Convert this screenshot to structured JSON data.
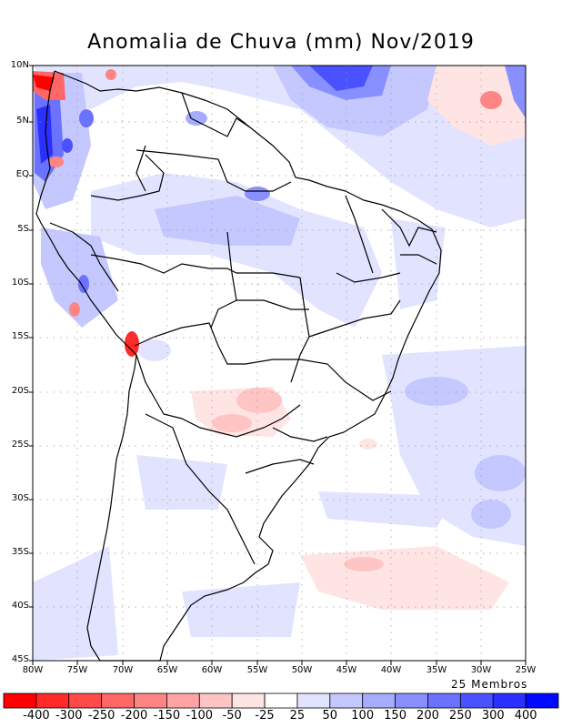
{
  "title": "Anomalia de Chuva (mm) Nov/2019",
  "subtitle": "25 Membros",
  "lat_labels": [
    "10N",
    "5N",
    "EQ",
    "5S",
    "10S",
    "15S",
    "20S",
    "25S",
    "30S",
    "35S",
    "40S",
    "45S"
  ],
  "lon_labels": [
    "80W",
    "75W",
    "70W",
    "65W",
    "60W",
    "55W",
    "50W",
    "45W",
    "40W",
    "35W",
    "30W",
    "25W"
  ],
  "colorbar": {
    "labels": [
      "-400",
      "-300",
      "-250",
      "-200",
      "-150",
      "-100",
      "-50",
      "-25",
      "25",
      "50",
      "100",
      "150",
      "200",
      "250",
      "300",
      "400"
    ],
    "colors": [
      "#ff0000",
      "#ff2a2a",
      "#ff4a4a",
      "#ff6666",
      "#ff8585",
      "#ffa3a3",
      "#ffc4c4",
      "#ffe4e4",
      "#ffffff",
      "#e2e4ff",
      "#c4c8ff",
      "#a6acff",
      "#8890ff",
      "#6a72ff",
      "#4a52ff",
      "#2a30ff",
      "#0008ff"
    ]
  }
}
